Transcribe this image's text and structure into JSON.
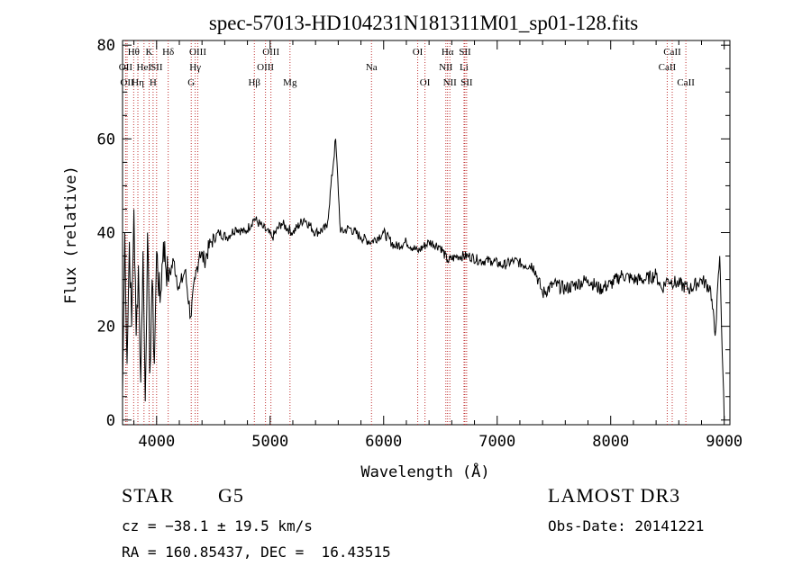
{
  "chart_data": {
    "type": "line",
    "title": "spec-57013-HD104231N181311M01_sp01-128.fits",
    "xlabel": "Wavelength (Å)",
    "ylabel": "Flux (relative)",
    "xlim": [
      3700,
      9050
    ],
    "ylim": [
      -1,
      81
    ],
    "x_ticks": [
      4000,
      5000,
      6000,
      7000,
      8000,
      9000
    ],
    "x_tick_labels": [
      "4000",
      "5000",
      "6000",
      "7000",
      "8000",
      "9000"
    ],
    "y_ticks": [
      0,
      20,
      40,
      60,
      80
    ],
    "y_tick_labels": [
      "0",
      "20",
      "40",
      "60",
      "80"
    ],
    "series": [
      {
        "name": "flux",
        "x": [
          3700,
          3720,
          3740,
          3760,
          3780,
          3800,
          3820,
          3840,
          3860,
          3880,
          3900,
          3920,
          3940,
          3960,
          3980,
          4000,
          4030,
          4060,
          4100,
          4150,
          4200,
          4250,
          4300,
          4340,
          4380,
          4420,
          4480,
          4550,
          4620,
          4700,
          4780,
          4860,
          4940,
          5020,
          5100,
          5200,
          5300,
          5400,
          5500,
          5577,
          5620,
          5700,
          5800,
          5890,
          6000,
          6100,
          6200,
          6300,
          6400,
          6500,
          6563,
          6650,
          6750,
          6850,
          6950,
          7050,
          7150,
          7250,
          7320,
          7400,
          7500,
          7600,
          7700,
          7800,
          7900,
          8000,
          8100,
          8200,
          8300,
          8400,
          8450,
          8500,
          8600,
          8700,
          8800,
          8880,
          8920,
          8960,
          9000
        ],
        "y": [
          6,
          40,
          12,
          38,
          20,
          45,
          18,
          33,
          8,
          36,
          4,
          40,
          10,
          30,
          12,
          36,
          25,
          38,
          30,
          34,
          28,
          32,
          22,
          30,
          36,
          34,
          38,
          40,
          39,
          41,
          40,
          43,
          41,
          39,
          42,
          40,
          43,
          40,
          41,
          60,
          40,
          41,
          39,
          38,
          40,
          37,
          38,
          36,
          38,
          37,
          34,
          35,
          35,
          34,
          34,
          33,
          34,
          33,
          33,
          27,
          29,
          28,
          29,
          30,
          28,
          29,
          31,
          30,
          30,
          31,
          28,
          30,
          29,
          28,
          30,
          28,
          18,
          35,
          0
        ]
      }
    ],
    "line_labels": [
      {
        "label": "OII",
        "wave": 3727,
        "row": 2
      },
      {
        "label": "OII",
        "wave": 3740,
        "row": 3
      },
      {
        "label": "Hθ",
        "wave": 3798,
        "row": 1
      },
      {
        "label": "Hη",
        "wave": 3835,
        "row": 3
      },
      {
        "label": "HeI",
        "wave": 3889,
        "row": 2
      },
      {
        "label": "K",
        "wave": 3934,
        "row": 1
      },
      {
        "label": "H",
        "wave": 3969,
        "row": 3
      },
      {
        "label": "SII",
        "wave": 4000,
        "row": 2
      },
      {
        "label": "Hδ",
        "wave": 4102,
        "row": 1
      },
      {
        "label": "G",
        "wave": 4305,
        "row": 3
      },
      {
        "label": "OIII",
        "wave": 4363,
        "row": 1
      },
      {
        "label": "Hγ",
        "wave": 4340,
        "row": 2
      },
      {
        "label": "Hβ",
        "wave": 4861,
        "row": 3
      },
      {
        "label": "OIII",
        "wave": 4959,
        "row": 2
      },
      {
        "label": "OIII",
        "wave": 5007,
        "row": 1
      },
      {
        "label": "Mg",
        "wave": 5175,
        "row": 3
      },
      {
        "label": "Na",
        "wave": 5893,
        "row": 2
      },
      {
        "label": "OI",
        "wave": 6300,
        "row": 1
      },
      {
        "label": "OI",
        "wave": 6364,
        "row": 3
      },
      {
        "label": "NII",
        "wave": 6548,
        "row": 2
      },
      {
        "label": "Hα",
        "wave": 6563,
        "row": 1
      },
      {
        "label": "NII",
        "wave": 6583,
        "row": 3
      },
      {
        "label": "Li",
        "wave": 6708,
        "row": 2
      },
      {
        "label": "SII",
        "wave": 6716,
        "row": 1
      },
      {
        "label": "SII",
        "wave": 6731,
        "row": 3
      },
      {
        "label": "CaII",
        "wave": 8498,
        "row": 2
      },
      {
        "label": "CaII",
        "wave": 8542,
        "row": 1
      },
      {
        "label": "CaII",
        "wave": 8662,
        "row": 3
      }
    ]
  },
  "info": {
    "object_class": "STAR",
    "subclass": "G5",
    "survey": "LAMOST DR3",
    "cz": "cz = −38.1 ± 19.5 km/s",
    "obs_date": "Obs-Date: 20141221",
    "coords": "RA = 160.85437, DEC =  16.43515"
  }
}
